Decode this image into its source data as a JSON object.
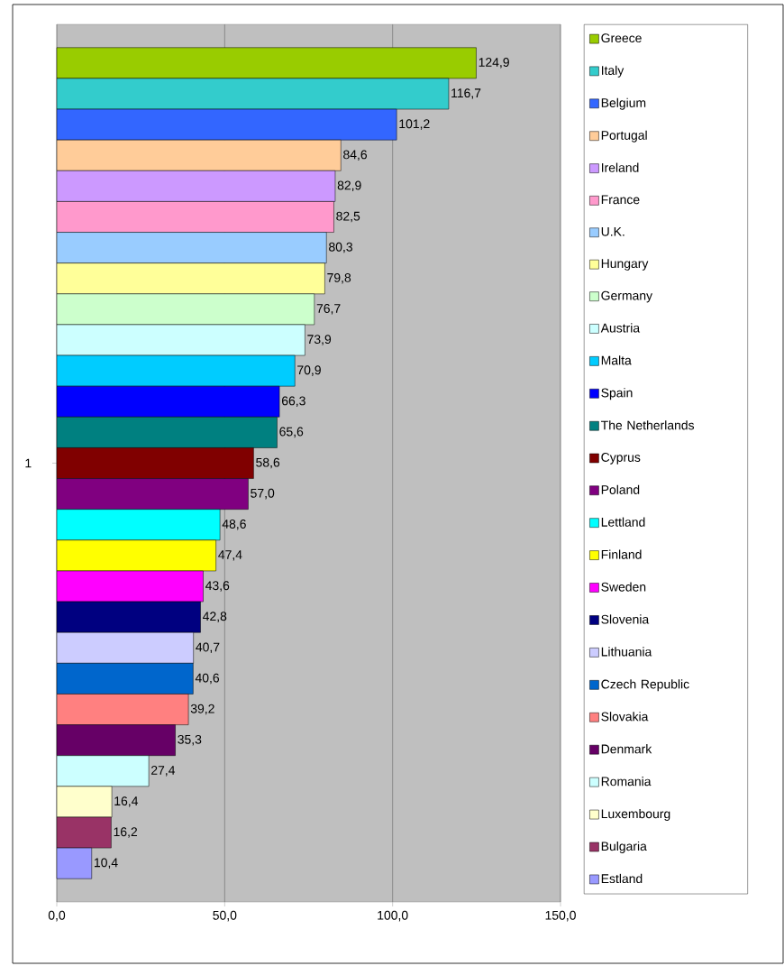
{
  "chart_data": {
    "type": "bar",
    "orientation": "horizontal",
    "categories": [
      "1"
    ],
    "xlim": [
      0,
      150
    ],
    "xticks": [
      {
        "value": 0,
        "label": "0,0"
      },
      {
        "value": 50,
        "label": "50,0"
      },
      {
        "value": 100,
        "label": "100,0"
      },
      {
        "value": 150,
        "label": "150,0"
      }
    ],
    "grid": "x",
    "legend": "right",
    "series": [
      {
        "name": "Greece",
        "color": "#99cc00",
        "values": [
          124.9
        ],
        "value_labels": [
          "124,9"
        ]
      },
      {
        "name": "Italy",
        "color": "#33cccc",
        "values": [
          116.7
        ],
        "value_labels": [
          "116,7"
        ]
      },
      {
        "name": "Belgium",
        "color": "#3366ff",
        "values": [
          101.2
        ],
        "value_labels": [
          "101,2"
        ]
      },
      {
        "name": "Portugal",
        "color": "#ffcc99",
        "values": [
          84.6
        ],
        "value_labels": [
          "84,6"
        ]
      },
      {
        "name": "Ireland",
        "color": "#cc99ff",
        "values": [
          82.9
        ],
        "value_labels": [
          "82,9"
        ]
      },
      {
        "name": "France",
        "color": "#ff99cc",
        "values": [
          82.5
        ],
        "value_labels": [
          "82,5"
        ]
      },
      {
        "name": "U.K.",
        "color": "#99ccff",
        "values": [
          80.3
        ],
        "value_labels": [
          "80,3"
        ]
      },
      {
        "name": "Hungary",
        "color": "#ffff99",
        "values": [
          79.8
        ],
        "value_labels": [
          "79,8"
        ]
      },
      {
        "name": "Germany",
        "color": "#ccffcc",
        "values": [
          76.7
        ],
        "value_labels": [
          "76,7"
        ]
      },
      {
        "name": "Austria",
        "color": "#ccffff",
        "values": [
          73.9
        ],
        "value_labels": [
          "73,9"
        ]
      },
      {
        "name": "Malta",
        "color": "#00ccff",
        "values": [
          70.9
        ],
        "value_labels": [
          "70,9"
        ]
      },
      {
        "name": "Spain",
        "color": "#0000ff",
        "values": [
          66.3
        ],
        "value_labels": [
          "66,3"
        ]
      },
      {
        "name": "The Netherlands",
        "color": "#008080",
        "values": [
          65.6
        ],
        "value_labels": [
          "65,6"
        ]
      },
      {
        "name": "Cyprus",
        "color": "#800000",
        "values": [
          58.6
        ],
        "value_labels": [
          "58,6"
        ]
      },
      {
        "name": "Poland",
        "color": "#800080",
        "values": [
          57.0
        ],
        "value_labels": [
          "57,0"
        ]
      },
      {
        "name": "Lettland",
        "color": "#00ffff",
        "values": [
          48.6
        ],
        "value_labels": [
          "48,6"
        ]
      },
      {
        "name": "Finland",
        "color": "#ffff00",
        "values": [
          47.4
        ],
        "value_labels": [
          "47,4"
        ]
      },
      {
        "name": "Sweden",
        "color": "#ff00ff",
        "values": [
          43.6
        ],
        "value_labels": [
          "43,6"
        ]
      },
      {
        "name": "Slovenia",
        "color": "#000080",
        "values": [
          42.8
        ],
        "value_labels": [
          "42,8"
        ]
      },
      {
        "name": "Lithuania",
        "color": "#ccccff",
        "values": [
          40.7
        ],
        "value_labels": [
          "40,7"
        ]
      },
      {
        "name": "Czech Republic",
        "color": "#0066cc",
        "values": [
          40.6
        ],
        "value_labels": [
          "40,6"
        ]
      },
      {
        "name": "Slovakia",
        "color": "#ff8080",
        "values": [
          39.2
        ],
        "value_labels": [
          "39,2"
        ]
      },
      {
        "name": "Denmark",
        "color": "#660066",
        "values": [
          35.3
        ],
        "value_labels": [
          "35,3"
        ]
      },
      {
        "name": "Romania",
        "color": "#ccffff",
        "values": [
          27.4
        ],
        "value_labels": [
          "27,4"
        ]
      },
      {
        "name": "Luxembourg",
        "color": "#ffffcc",
        "values": [
          16.4
        ],
        "value_labels": [
          "16,4"
        ]
      },
      {
        "name": "Bulgaria",
        "color": "#993366",
        "values": [
          16.2
        ],
        "value_labels": [
          "16,2"
        ]
      },
      {
        "name": "Estland",
        "color": "#9999ff",
        "values": [
          10.4
        ],
        "value_labels": [
          "10,4"
        ]
      }
    ]
  }
}
